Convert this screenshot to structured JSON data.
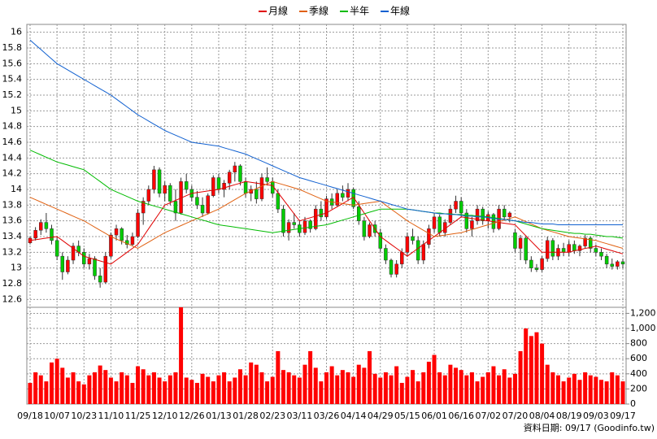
{
  "chart_data": {
    "type": "candlestick",
    "series": [
      {
        "name": "月線",
        "color": "#e00000",
        "values": [
          13.35,
          13.36,
          13.37,
          13.38,
          13.39,
          13.4,
          13.35,
          13.3,
          13.25,
          13.2,
          13.15,
          13.13,
          13.11,
          13.09,
          13.07,
          13.05,
          13.1,
          13.15,
          13.2,
          13.25,
          13.3,
          13.4,
          13.5,
          13.6,
          13.7,
          13.8,
          13.83,
          13.86,
          13.89,
          13.92,
          13.95,
          13.96,
          13.97,
          13.98,
          13.99,
          14.0,
          14.02,
          14.04,
          14.06,
          14.08,
          14.1,
          14.09,
          14.08,
          14.07,
          14.06,
          14.05,
          13.96,
          13.87,
          13.78,
          13.69,
          13.6,
          13.62,
          13.64,
          13.66,
          13.68,
          13.7,
          13.74,
          13.78,
          13.82,
          13.86,
          13.9,
          13.8,
          13.7,
          13.6,
          13.5,
          13.4,
          13.35,
          13.3,
          13.25,
          13.2,
          13.15,
          13.2,
          13.25,
          13.3,
          13.35,
          13.4,
          13.45,
          13.5,
          13.55,
          13.6,
          13.65,
          13.64,
          13.63,
          13.62,
          13.61,
          13.6,
          13.59,
          13.58,
          13.57,
          13.56,
          13.55,
          13.48,
          13.41,
          13.34,
          13.27,
          13.2,
          13.2,
          13.2,
          13.2,
          13.2,
          13.2,
          13.22,
          13.23,
          13.25,
          13.26,
          13.28,
          13.26,
          13.24,
          13.22,
          13.2,
          13.18
        ]
      },
      {
        "name": "季線",
        "color": "#e06010",
        "values": [
          13.9,
          13.87,
          13.84,
          13.81,
          13.78,
          13.75,
          13.72,
          13.69,
          13.66,
          13.63,
          13.6,
          13.56,
          13.52,
          13.48,
          13.44,
          13.4,
          13.37,
          13.34,
          13.31,
          13.28,
          13.25,
          13.29,
          13.33,
          13.37,
          13.41,
          13.45,
          13.48,
          13.51,
          13.54,
          13.57,
          13.6,
          13.63,
          13.66,
          13.69,
          13.72,
          13.75,
          13.79,
          13.83,
          13.87,
          13.91,
          13.95,
          13.98,
          14.01,
          14.04,
          14.07,
          14.1,
          14.08,
          14.06,
          14.04,
          14.02,
          14.0,
          13.97,
          13.94,
          13.91,
          13.88,
          13.85,
          13.84,
          13.83,
          13.82,
          13.81,
          13.8,
          13.81,
          13.82,
          13.83,
          13.84,
          13.85,
          13.8,
          13.75,
          13.7,
          13.65,
          13.6,
          13.56,
          13.52,
          13.48,
          13.44,
          13.4,
          13.41,
          13.42,
          13.43,
          13.44,
          13.45,
          13.47,
          13.49,
          13.51,
          13.53,
          13.55,
          13.57,
          13.59,
          13.61,
          13.63,
          13.65,
          13.62,
          13.59,
          13.56,
          13.53,
          13.5,
          13.48,
          13.46,
          13.44,
          13.42,
          13.4,
          13.39,
          13.38,
          13.37,
          13.36,
          13.35,
          13.33,
          13.31,
          13.29,
          13.27,
          13.25
        ]
      },
      {
        "name": "半年",
        "color": "#00bb00",
        "values": [
          14.5,
          14.47,
          14.44,
          14.41,
          14.38,
          14.35,
          14.33,
          14.31,
          14.29,
          14.27,
          14.25,
          14.2,
          14.15,
          14.1,
          14.05,
          14.0,
          13.97,
          13.94,
          13.91,
          13.88,
          13.85,
          13.83,
          13.81,
          13.79,
          13.77,
          13.75,
          13.73,
          13.71,
          13.69,
          13.67,
          13.65,
          13.63,
          13.61,
          13.59,
          13.57,
          13.55,
          13.54,
          13.53,
          13.52,
          13.51,
          13.5,
          13.49,
          13.48,
          13.47,
          13.46,
          13.45,
          13.46,
          13.47,
          13.48,
          13.49,
          13.5,
          13.51,
          13.52,
          13.53,
          13.54,
          13.55,
          13.57,
          13.59,
          13.61,
          13.63,
          13.65,
          13.67,
          13.69,
          13.71,
          13.73,
          13.75,
          13.75,
          13.75,
          13.75,
          13.75,
          13.75,
          13.74,
          13.73,
          13.72,
          13.71,
          13.7,
          13.7,
          13.69,
          13.69,
          13.68,
          13.68,
          13.67,
          13.67,
          13.66,
          13.66,
          13.65,
          13.64,
          13.63,
          13.62,
          13.61,
          13.6,
          13.58,
          13.56,
          13.54,
          13.52,
          13.5,
          13.49,
          13.48,
          13.47,
          13.46,
          13.45,
          13.44,
          13.44,
          13.43,
          13.43,
          13.42,
          13.41,
          13.4,
          13.4,
          13.39,
          13.38
        ]
      },
      {
        "name": "年線",
        "color": "#1060d0",
        "values": [
          15.9,
          15.84,
          15.78,
          15.72,
          15.66,
          15.6,
          15.56,
          15.52,
          15.48,
          15.44,
          15.4,
          15.36,
          15.32,
          15.28,
          15.24,
          15.2,
          15.15,
          15.1,
          15.05,
          15.0,
          14.95,
          14.91,
          14.87,
          14.83,
          14.79,
          14.75,
          14.72,
          14.69,
          14.66,
          14.63,
          14.6,
          14.59,
          14.58,
          14.57,
          14.56,
          14.55,
          14.53,
          14.51,
          14.49,
          14.47,
          14.45,
          14.42,
          14.39,
          14.36,
          14.33,
          14.3,
          14.27,
          14.24,
          14.21,
          14.18,
          14.15,
          14.13,
          14.11,
          14.09,
          14.07,
          14.05,
          14.03,
          14.01,
          13.99,
          13.97,
          13.95,
          13.93,
          13.91,
          13.89,
          13.87,
          13.85,
          13.83,
          13.81,
          13.79,
          13.77,
          13.75,
          13.74,
          13.73,
          13.72,
          13.71,
          13.7,
          13.69,
          13.69,
          13.68,
          13.68,
          13.67,
          13.66,
          13.66,
          13.65,
          13.65,
          13.64,
          13.63,
          13.62,
          13.62,
          13.61,
          13.6,
          13.59,
          13.58,
          13.58,
          13.57,
          13.56,
          13.56,
          13.56,
          13.55,
          13.55,
          13.55,
          13.55,
          13.55,
          13.55,
          13.55,
          13.55,
          13.55,
          13.55,
          13.55,
          13.55,
          13.55
        ]
      }
    ],
    "categories": [
      "09/18",
      null,
      null,
      null,
      null,
      "10/07",
      null,
      null,
      null,
      null,
      "10/23",
      null,
      null,
      null,
      null,
      "11/10",
      null,
      null,
      null,
      null,
      "11/25",
      null,
      null,
      null,
      null,
      "12/10",
      null,
      null,
      null,
      null,
      "12/26",
      null,
      null,
      null,
      null,
      "01/13",
      null,
      null,
      null,
      null,
      "01/28",
      null,
      null,
      null,
      null,
      "02/23",
      null,
      null,
      null,
      null,
      "03/11",
      null,
      null,
      null,
      null,
      "03/26",
      null,
      null,
      null,
      null,
      "04/14",
      null,
      null,
      null,
      null,
      "04/29",
      null,
      null,
      null,
      null,
      "05/15",
      null,
      null,
      null,
      null,
      "06/01",
      null,
      null,
      null,
      null,
      "06/16",
      null,
      null,
      null,
      null,
      "07/02",
      null,
      null,
      null,
      null,
      "07/20",
      null,
      null,
      null,
      null,
      "08/04",
      null,
      null,
      null,
      null,
      "08/19",
      null,
      null,
      null,
      null,
      "09/03",
      null,
      null,
      null,
      null,
      "09/17"
    ],
    "ohlc": [
      [
        13.32,
        13.4,
        13.3,
        13.38
      ],
      [
        13.38,
        13.52,
        13.35,
        13.48
      ],
      [
        13.48,
        13.62,
        13.42,
        13.58
      ],
      [
        13.58,
        13.7,
        13.45,
        13.5
      ],
      [
        13.5,
        13.55,
        13.3,
        13.35
      ],
      [
        13.35,
        13.4,
        13.1,
        13.15
      ],
      [
        13.15,
        13.2,
        12.85,
        12.95
      ],
      [
        12.95,
        13.15,
        12.92,
        13.1
      ],
      [
        13.1,
        13.32,
        13.05,
        13.28
      ],
      [
        13.28,
        13.35,
        13.15,
        13.2
      ],
      [
        13.2,
        13.25,
        13.0,
        13.05
      ],
      [
        13.05,
        13.18,
        12.98,
        13.12
      ],
      [
        13.12,
        13.15,
        12.85,
        12.9
      ],
      [
        12.9,
        13.0,
        12.75,
        12.82
      ],
      [
        12.82,
        13.2,
        12.8,
        13.15
      ],
      [
        13.15,
        13.45,
        13.12,
        13.42
      ],
      [
        13.42,
        13.55,
        13.35,
        13.5
      ],
      [
        13.5,
        13.52,
        13.3,
        13.35
      ],
      [
        13.35,
        13.42,
        13.25,
        13.3
      ],
      [
        13.3,
        13.45,
        13.28,
        13.4
      ],
      [
        13.4,
        13.75,
        13.38,
        13.7
      ],
      [
        13.7,
        13.9,
        13.55,
        13.85
      ],
      [
        13.85,
        14.05,
        13.8,
        14.0
      ],
      [
        14.0,
        14.3,
        13.95,
        14.25
      ],
      [
        14.25,
        14.28,
        13.9,
        13.95
      ],
      [
        13.95,
        14.1,
        13.85,
        14.05
      ],
      [
        14.05,
        14.08,
        13.8,
        13.85
      ],
      [
        13.85,
        14.0,
        13.6,
        13.7
      ],
      [
        13.7,
        14.15,
        13.68,
        14.1
      ],
      [
        14.1,
        14.2,
        13.95,
        14.0
      ],
      [
        14.0,
        14.05,
        13.85,
        13.9
      ],
      [
        13.9,
        13.98,
        13.75,
        13.8
      ],
      [
        13.8,
        13.9,
        13.65,
        13.7
      ],
      [
        13.7,
        13.95,
        13.68,
        13.92
      ],
      [
        13.92,
        14.18,
        13.9,
        14.15
      ],
      [
        14.15,
        14.2,
        13.95,
        14.0
      ],
      [
        14.0,
        14.12,
        13.9,
        14.08
      ],
      [
        14.08,
        14.25,
        14.0,
        14.22
      ],
      [
        14.22,
        14.35,
        14.1,
        14.3
      ],
      [
        14.3,
        14.32,
        14.05,
        14.1
      ],
      [
        14.1,
        14.15,
        13.9,
        13.95
      ],
      [
        13.95,
        14.05,
        13.85,
        14.0
      ],
      [
        14.0,
        14.1,
        13.82,
        13.88
      ],
      [
        13.88,
        14.2,
        13.85,
        14.15
      ],
      [
        14.15,
        14.28,
        14.05,
        14.1
      ],
      [
        14.1,
        14.15,
        13.9,
        13.95
      ],
      [
        13.95,
        14.0,
        13.7,
        13.75
      ],
      [
        13.75,
        13.8,
        13.4,
        13.45
      ],
      [
        13.45,
        13.62,
        13.35,
        13.58
      ],
      [
        13.58,
        13.7,
        13.5,
        13.55
      ],
      [
        13.55,
        13.6,
        13.4,
        13.45
      ],
      [
        13.45,
        13.65,
        13.42,
        13.6
      ],
      [
        13.6,
        13.62,
        13.45,
        13.5
      ],
      [
        13.5,
        13.8,
        13.48,
        13.75
      ],
      [
        13.75,
        13.85,
        13.6,
        13.65
      ],
      [
        13.65,
        13.92,
        13.62,
        13.88
      ],
      [
        13.88,
        13.95,
        13.75,
        13.8
      ],
      [
        13.8,
        14.0,
        13.78,
        13.95
      ],
      [
        13.95,
        14.05,
        13.85,
        13.9
      ],
      [
        13.9,
        14.08,
        13.85,
        14.0
      ],
      [
        14.0,
        14.02,
        13.75,
        13.78
      ],
      [
        13.78,
        13.85,
        13.55,
        13.6
      ],
      [
        13.6,
        13.65,
        13.35,
        13.4
      ],
      [
        13.4,
        13.58,
        13.38,
        13.55
      ],
      [
        13.55,
        13.6,
        13.4,
        13.45
      ],
      [
        13.45,
        13.5,
        13.2,
        13.25
      ],
      [
        13.25,
        13.3,
        13.05,
        13.1
      ],
      [
        13.1,
        13.12,
        12.88,
        12.92
      ],
      [
        12.92,
        13.1,
        12.88,
        13.05
      ],
      [
        13.05,
        13.25,
        13.0,
        13.2
      ],
      [
        13.2,
        13.45,
        13.15,
        13.4
      ],
      [
        13.4,
        13.5,
        13.3,
        13.35
      ],
      [
        13.35,
        13.4,
        13.05,
        13.1
      ],
      [
        13.1,
        13.35,
        13.05,
        13.3
      ],
      [
        13.3,
        13.55,
        13.25,
        13.5
      ],
      [
        13.5,
        13.7,
        13.45,
        13.65
      ],
      [
        13.65,
        13.68,
        13.4,
        13.45
      ],
      [
        13.45,
        13.62,
        13.4,
        13.58
      ],
      [
        13.58,
        13.8,
        13.55,
        13.75
      ],
      [
        13.75,
        13.92,
        13.7,
        13.85
      ],
      [
        13.85,
        13.9,
        13.65,
        13.7
      ],
      [
        13.7,
        13.75,
        13.45,
        13.5
      ],
      [
        13.5,
        13.65,
        13.4,
        13.6
      ],
      [
        13.6,
        13.8,
        13.55,
        13.75
      ],
      [
        13.75,
        13.78,
        13.55,
        13.6
      ],
      [
        13.6,
        13.72,
        13.5,
        13.68
      ],
      [
        13.68,
        13.7,
        13.45,
        13.5
      ],
      [
        13.5,
        13.8,
        13.48,
        13.75
      ],
      [
        13.75,
        13.8,
        13.6,
        13.65
      ],
      [
        13.65,
        13.72,
        13.58,
        13.7
      ],
      [
        13.45,
        13.5,
        13.2,
        13.25
      ],
      [
        13.25,
        13.42,
        13.1,
        13.38
      ],
      [
        13.38,
        13.4,
        13.05,
        13.1
      ],
      [
        13.1,
        13.15,
        12.95,
        13.0
      ],
      [
        13.0,
        13.05,
        12.95,
        12.98
      ],
      [
        12.98,
        13.15,
        12.95,
        13.12
      ],
      [
        13.12,
        13.4,
        13.08,
        13.35
      ],
      [
        13.35,
        13.38,
        13.1,
        13.15
      ],
      [
        13.15,
        13.3,
        13.1,
        13.25
      ],
      [
        13.25,
        13.32,
        13.15,
        13.2
      ],
      [
        13.2,
        13.35,
        13.15,
        13.3
      ],
      [
        13.3,
        13.35,
        13.18,
        13.22
      ],
      [
        13.22,
        13.3,
        13.15,
        13.28
      ],
      [
        13.28,
        13.42,
        13.25,
        13.38
      ],
      [
        13.38,
        13.4,
        13.2,
        13.25
      ],
      [
        13.25,
        13.3,
        13.15,
        13.2
      ],
      [
        13.2,
        13.25,
        13.1,
        13.15
      ],
      [
        13.15,
        13.18,
        13.0,
        13.05
      ],
      [
        13.05,
        13.12,
        12.98,
        13.02
      ],
      [
        13.02,
        13.1,
        12.98,
        13.08
      ],
      [
        13.08,
        13.12,
        13.0,
        13.05
      ]
    ],
    "up_color": "#ff0000",
    "down_color": "#00cc00",
    "volume": [
      280,
      420,
      380,
      300,
      550,
      600,
      480,
      350,
      420,
      300,
      260,
      380,
      420,
      510,
      450,
      350,
      300,
      420,
      380,
      280,
      500,
      460,
      380,
      420,
      350,
      300,
      380,
      420,
      1280,
      350,
      320,
      280,
      400,
      360,
      300,
      380,
      420,
      300,
      350,
      460,
      380,
      550,
      520,
      420,
      300,
      360,
      700,
      450,
      420,
      380,
      350,
      520,
      700,
      480,
      300,
      420,
      500,
      380,
      450,
      420,
      360,
      520,
      480,
      700,
      400,
      350,
      420,
      380,
      500,
      280,
      360,
      450,
      300,
      420,
      560,
      650,
      420,
      380,
      520,
      480,
      450,
      380,
      420,
      300,
      360,
      420,
      500,
      380,
      460,
      350,
      400,
      700,
      1000,
      900,
      950,
      800,
      520,
      420,
      380,
      300,
      350,
      400,
      320,
      420,
      380,
      360,
      320,
      300,
      420,
      380,
      300
    ],
    "volume_color": "#ff0000",
    "ylim": [
      12.5,
      16.1
    ],
    "yticks": [
      12.6,
      12.8,
      13,
      13.2,
      13.4,
      13.6,
      13.8,
      14,
      14.2,
      14.4,
      14.6,
      14.8,
      15,
      15.2,
      15.4,
      15.6,
      15.8,
      16
    ],
    "y2lim": [
      0,
      1280
    ],
    "y2ticks": [
      0,
      200,
      400,
      600,
      800,
      {
        "value": 1000,
        "label": "1,000"
      },
      {
        "value": 1200,
        "label": "1,200"
      }
    ],
    "grid": true,
    "footnote": "資料日期: 09/17 (Goodinfo.tw)"
  }
}
